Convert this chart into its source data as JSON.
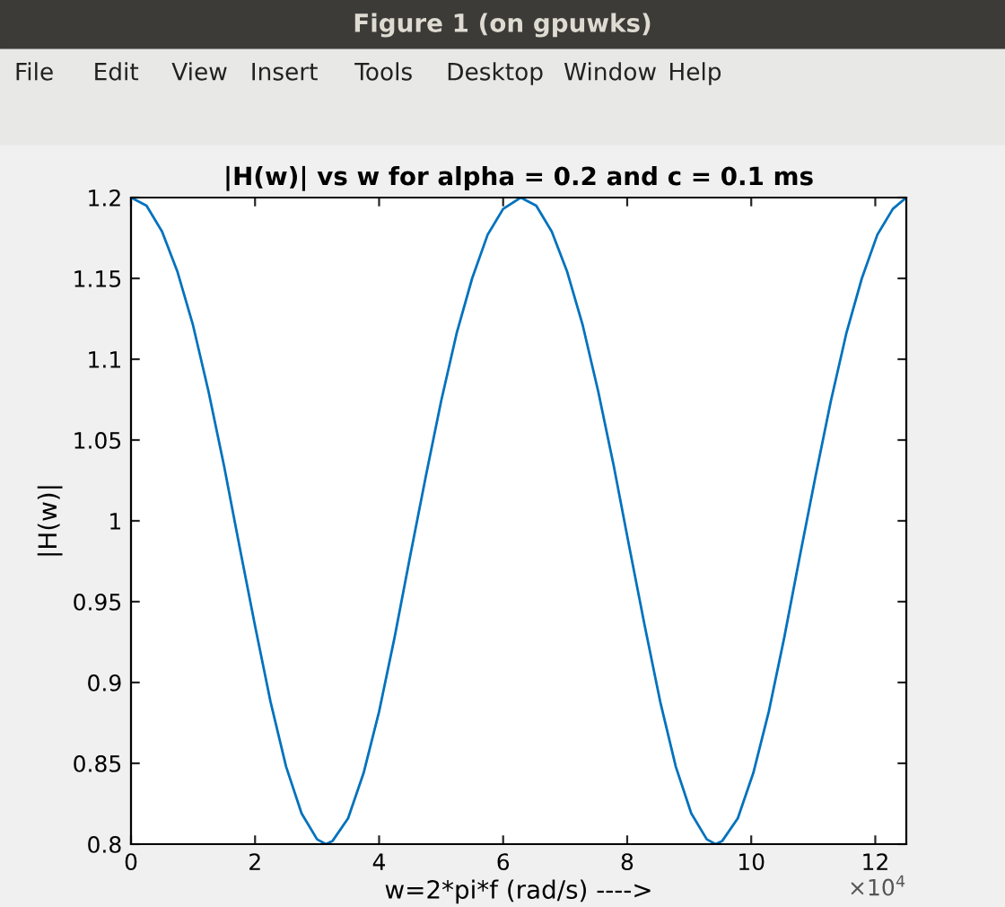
{
  "chart_data": {
    "type": "line",
    "title": "|H(w)| vs w for alpha = 0.2 and c = 0.1 ms",
    "xlabel": "w=2*pi*f (rad/s) ---->",
    "ylabel": "|H(w)|",
    "annotations": [
      "Figure 1 (on gpuwks)",
      "File",
      "Edit",
      "View",
      "Insert",
      "Tools",
      "Desktop",
      "Window",
      "Help",
      "×10$^{4}$"
    ],
    "series": [
      {
        "color": "#0072bd",
        "x": [
          0,
          0.25,
          0.5,
          0.75,
          1,
          1.25,
          1.5,
          1.75,
          2,
          2.25,
          2.5,
          2.75,
          3,
          3.1416,
          3.25,
          3.5,
          3.75,
          4,
          4.25,
          4.5,
          4.75,
          5,
          5.25,
          5.5,
          5.75,
          6,
          6.2832,
          6.5332,
          6.7832,
          7.0332,
          7.2832,
          7.5332,
          7.7832,
          8.0332,
          8.2832,
          8.5332,
          8.7832,
          9.0332,
          9.2832,
          9.4248,
          9.5332,
          9.7832,
          10.0332,
          10.2832,
          10.5332,
          10.7832,
          11.0332,
          11.2832,
          11.5332,
          11.7832,
          12.0332,
          12.2832,
          12.5
        ],
        "values": [
          1.2,
          1.195,
          1.179,
          1.154,
          1.121,
          1.08,
          1.034,
          0.984,
          0.935,
          0.888,
          0.848,
          0.819,
          0.803,
          0.8,
          0.802,
          0.816,
          0.844,
          0.882,
          0.928,
          0.978,
          1.027,
          1.074,
          1.116,
          1.15,
          1.177,
          1.193,
          1.2,
          1.195,
          1.179,
          1.154,
          1.121,
          1.08,
          1.034,
          0.984,
          0.935,
          0.888,
          0.848,
          0.819,
          0.803,
          0.8,
          0.802,
          0.816,
          0.844,
          0.882,
          0.928,
          0.978,
          1.027,
          1.074,
          1.116,
          1.15,
          1.177,
          1.193,
          1.2
        ]
      }
    ],
    "xlim": [
      0,
      12.5
    ],
    "xticks": [
      0,
      2,
      4,
      6,
      8,
      10,
      12
    ],
    "ylim": [
      0.8,
      1.2
    ],
    "yticks": [
      0.8,
      0.85,
      0.9,
      0.95,
      1,
      1.05,
      1.1,
      1.15,
      1.2
    ],
    "grid": false,
    "legend": false,
    "marker": "none",
    "line_style": "solid"
  }
}
